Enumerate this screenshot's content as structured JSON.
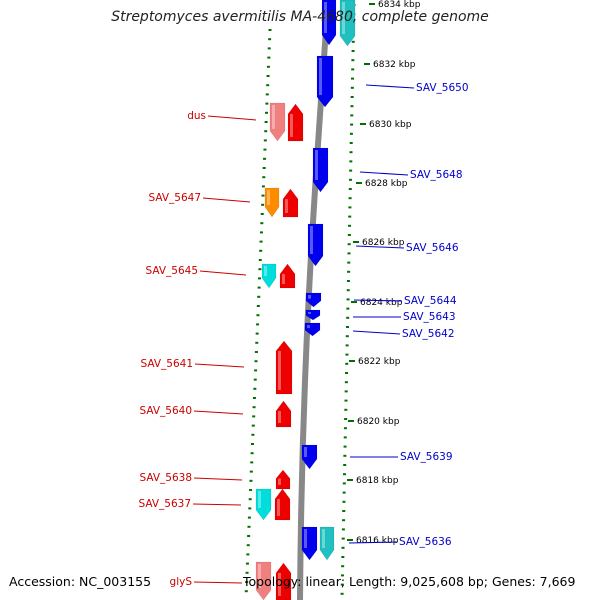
{
  "title": "Streptomyces avermitilis MA-4680, complete genome",
  "footer": {
    "accession": "Accession: NC_003155",
    "topology": "Topology: linear; Length: 9,025,608 bp; Genes: 7,669"
  },
  "colors": {
    "left_label": "#cc0000",
    "right_label": "#0000cc",
    "tick": "#007000",
    "backbone": "#888888",
    "red_gene": "#ee0000",
    "pink_gene": "#f08080",
    "orange_gene": "#ff8c00",
    "cyan_gene": "#00dddd",
    "blue_gene": "#0000ee",
    "teal_gene": "#20c0c0"
  },
  "scale_labels": [
    "6834 kbp",
    "6832 kbp",
    "6830 kbp",
    "6828 kbp",
    "6826 kbp",
    "6824 kbp",
    "6822 kbp",
    "6820 kbp",
    "6818 kbp",
    "6816 kbp"
  ],
  "left_gene_labels": [
    "dus",
    "SAV_5647",
    "SAV_5645",
    "SAV_5641",
    "SAV_5640",
    "SAV_5638",
    "SAV_5637",
    "glyS"
  ],
  "right_gene_labels": [
    "SAV_5650",
    "SAV_5648",
    "SAV_5646",
    "SAV_5644",
    "SAV_5643",
    "SAV_5642",
    "SAV_5639",
    "SAV_5636"
  ]
}
